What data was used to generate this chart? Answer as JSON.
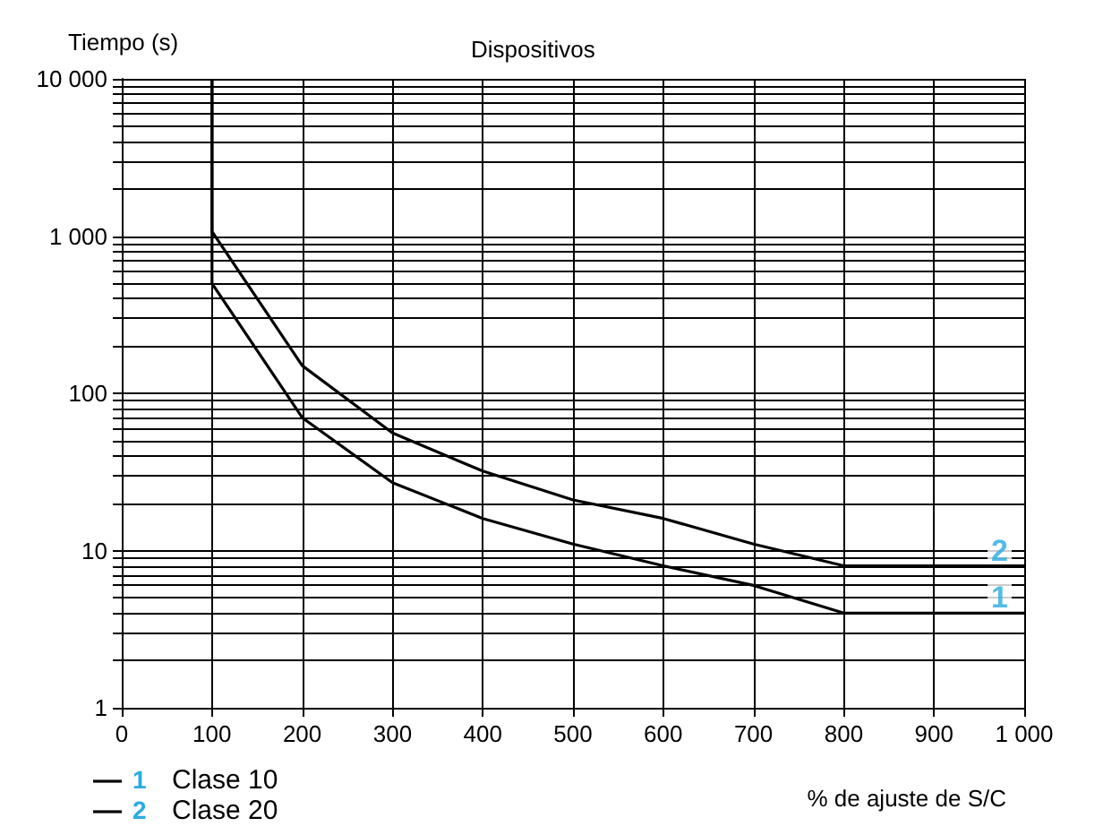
{
  "chart_data": {
    "type": "line",
    "title": "Dispositivos",
    "ylabel": "Tiempo (s)",
    "xlabel": "% de ajuste de S/C",
    "series": [
      {
        "name": "Clase 10",
        "color": "#000000",
        "x": [
          100,
          100,
          200,
          300,
          400,
          500,
          600,
          700,
          800,
          1000
        ],
        "values": [
          10000,
          500,
          70,
          27,
          16,
          11,
          8,
          6,
          4,
          4
        ]
      },
      {
        "name": "Clase 20",
        "color": "#000000",
        "x": [
          100,
          100,
          200,
          300,
          400,
          500,
          600,
          700,
          800,
          1000
        ],
        "values": [
          10000,
          1070,
          150,
          56,
          32,
          21,
          16,
          11,
          8,
          8
        ]
      }
    ],
    "annotations": [
      {
        "text": "1",
        "x": 1000,
        "y": 4
      },
      {
        "text": "2",
        "x": 1000,
        "y": 8
      }
    ],
    "log": "y",
    "xlim": [
      0,
      1000
    ],
    "xticks": [
      0,
      100,
      200,
      300,
      400,
      500,
      600,
      700,
      800,
      900,
      {
        "value": 1000,
        "label": "1 000"
      }
    ],
    "ylim": [
      1,
      10000
    ],
    "yticks": [
      1,
      10,
      100,
      {
        "value": 1000,
        "label": "1 000"
      },
      {
        "value": 10000,
        "label": "10 000"
      }
    ],
    "grid": true,
    "legend": "bottom left",
    "marker": "none",
    "line_style": "solid"
  }
}
